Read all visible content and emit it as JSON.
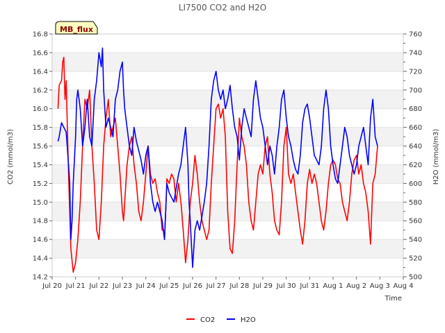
{
  "chart_data": {
    "type": "line",
    "title": "LI7500 CO2 and H2O",
    "badge": "MB_flux",
    "xlabel": "Time",
    "ylabel_left": "CO2 (mmol/m3)",
    "ylabel_right": "H2O (mmol/m3)",
    "x_ticks": [
      "Jul 20",
      "Jul 21",
      "Jul 22",
      "Jul 23",
      "Jul 24",
      "Jul 25",
      "Jul 26",
      "Jul 27",
      "Jul 28",
      "Jul 29",
      "Jul 30",
      "Jul 31",
      "Aug 1",
      "Aug 2",
      "Aug 3",
      "Aug 4"
    ],
    "x_range_days": [
      0,
      15
    ],
    "y_left_range": [
      14.2,
      16.8
    ],
    "y_left_ticks": [
      "14.2",
      "14.4",
      "14.6",
      "14.8",
      "15.0",
      "15.2",
      "15.4",
      "15.6",
      "15.8",
      "16.0",
      "16.2",
      "16.4",
      "16.6",
      "16.8"
    ],
    "y_right_range": [
      500,
      760
    ],
    "y_right_ticks": [
      "500",
      "520",
      "540",
      "560",
      "580",
      "600",
      "620",
      "640",
      "660",
      "680",
      "700",
      "720",
      "740",
      "760"
    ],
    "grid": "horizontal alternating bands",
    "legend_position": "bottom-center",
    "series": [
      {
        "name": "CO2",
        "axis": "left",
        "color": "#ff0000",
        "points": [
          [
            0.25,
            16.0
          ],
          [
            0.3,
            16.25
          ],
          [
            0.4,
            16.3
          ],
          [
            0.45,
            16.5
          ],
          [
            0.5,
            16.55
          ],
          [
            0.55,
            16.1
          ],
          [
            0.6,
            16.3
          ],
          [
            0.7,
            15.3
          ],
          [
            0.8,
            14.5
          ],
          [
            0.9,
            14.25
          ],
          [
            1.0,
            14.35
          ],
          [
            1.1,
            14.6
          ],
          [
            1.2,
            15.0
          ],
          [
            1.3,
            15.6
          ],
          [
            1.4,
            16.1
          ],
          [
            1.5,
            16.0
          ],
          [
            1.6,
            16.2
          ],
          [
            1.7,
            15.6
          ],
          [
            1.8,
            15.2
          ],
          [
            1.9,
            14.7
          ],
          [
            2.0,
            14.6
          ],
          [
            2.1,
            15.0
          ],
          [
            2.2,
            15.6
          ],
          [
            2.3,
            15.9
          ],
          [
            2.4,
            16.1
          ],
          [
            2.5,
            15.7
          ],
          [
            2.6,
            15.8
          ],
          [
            2.7,
            15.9
          ],
          [
            2.8,
            15.6
          ],
          [
            2.9,
            15.3
          ],
          [
            3.0,
            14.9
          ],
          [
            3.05,
            14.8
          ],
          [
            3.1,
            15.0
          ],
          [
            3.2,
            15.4
          ],
          [
            3.3,
            15.6
          ],
          [
            3.4,
            15.7
          ],
          [
            3.5,
            15.4
          ],
          [
            3.6,
            15.2
          ],
          [
            3.7,
            14.9
          ],
          [
            3.8,
            14.8
          ],
          [
            3.9,
            15.0
          ],
          [
            4.0,
            15.3
          ],
          [
            4.1,
            15.6
          ],
          [
            4.2,
            15.3
          ],
          [
            4.3,
            15.2
          ],
          [
            4.4,
            15.25
          ],
          [
            4.5,
            15.1
          ],
          [
            4.6,
            15.0
          ],
          [
            4.7,
            14.7
          ],
          [
            4.75,
            14.7
          ],
          [
            4.8,
            14.6
          ],
          [
            4.85,
            14.9
          ],
          [
            4.9,
            15.25
          ],
          [
            5.0,
            15.2
          ],
          [
            5.1,
            15.3
          ],
          [
            5.2,
            15.25
          ],
          [
            5.3,
            15.0
          ],
          [
            5.4,
            15.2
          ],
          [
            5.5,
            15.0
          ],
          [
            5.6,
            14.7
          ],
          [
            5.7,
            14.35
          ],
          [
            5.8,
            14.6
          ],
          [
            5.9,
            15.0
          ],
          [
            6.0,
            15.2
          ],
          [
            6.1,
            15.5
          ],
          [
            6.2,
            15.3
          ],
          [
            6.3,
            15.0
          ],
          [
            6.4,
            14.8
          ],
          [
            6.5,
            14.7
          ],
          [
            6.6,
            14.6
          ],
          [
            6.7,
            14.7
          ],
          [
            6.8,
            15.2
          ],
          [
            6.9,
            15.6
          ],
          [
            7.0,
            16.0
          ],
          [
            7.1,
            16.05
          ],
          [
            7.2,
            15.9
          ],
          [
            7.3,
            16.0
          ],
          [
            7.4,
            15.7
          ],
          [
            7.5,
            14.9
          ],
          [
            7.6,
            14.5
          ],
          [
            7.7,
            14.45
          ],
          [
            7.8,
            14.8
          ],
          [
            7.9,
            15.4
          ],
          [
            8.0,
            15.9
          ],
          [
            8.1,
            15.7
          ],
          [
            8.2,
            15.6
          ],
          [
            8.3,
            15.4
          ],
          [
            8.4,
            15.0
          ],
          [
            8.5,
            14.8
          ],
          [
            8.6,
            14.7
          ],
          [
            8.7,
            15.0
          ],
          [
            8.8,
            15.3
          ],
          [
            8.9,
            15.4
          ],
          [
            9.0,
            15.3
          ],
          [
            9.1,
            15.6
          ],
          [
            9.2,
            15.7
          ],
          [
            9.3,
            15.3
          ],
          [
            9.4,
            15.1
          ],
          [
            9.5,
            14.8
          ],
          [
            9.6,
            14.7
          ],
          [
            9.7,
            14.65
          ],
          [
            9.8,
            15.0
          ],
          [
            9.9,
            15.6
          ],
          [
            10.0,
            15.8
          ],
          [
            10.1,
            15.3
          ],
          [
            10.2,
            15.2
          ],
          [
            10.3,
            15.3
          ],
          [
            10.4,
            15.1
          ],
          [
            10.5,
            14.9
          ],
          [
            10.6,
            14.7
          ],
          [
            10.7,
            14.55
          ],
          [
            10.8,
            14.8
          ],
          [
            10.9,
            15.2
          ],
          [
            11.0,
            15.35
          ],
          [
            11.1,
            15.2
          ],
          [
            11.2,
            15.3
          ],
          [
            11.3,
            15.2
          ],
          [
            11.4,
            15.0
          ],
          [
            11.5,
            14.8
          ],
          [
            11.6,
            14.7
          ],
          [
            11.7,
            14.9
          ],
          [
            11.8,
            15.2
          ],
          [
            11.9,
            15.4
          ],
          [
            12.0,
            15.45
          ],
          [
            12.1,
            15.4
          ],
          [
            12.2,
            15.25
          ],
          [
            12.3,
            15.2
          ],
          [
            12.4,
            15.0
          ],
          [
            12.5,
            14.9
          ],
          [
            12.6,
            14.8
          ],
          [
            12.7,
            15.0
          ],
          [
            12.8,
            15.3
          ],
          [
            12.9,
            15.45
          ],
          [
            13.0,
            15.5
          ],
          [
            13.1,
            15.3
          ],
          [
            13.2,
            15.4
          ],
          [
            13.3,
            15.2
          ],
          [
            13.4,
            15.1
          ],
          [
            13.5,
            14.9
          ],
          [
            13.6,
            14.55
          ],
          [
            13.7,
            15.2
          ],
          [
            13.8,
            15.3
          ],
          [
            13.9,
            15.6
          ]
        ]
      },
      {
        "name": "H2O",
        "axis": "right",
        "color": "#0000ff",
        "points": [
          [
            0.25,
            645
          ],
          [
            0.3,
            650
          ],
          [
            0.4,
            665
          ],
          [
            0.5,
            660
          ],
          [
            0.6,
            655
          ],
          [
            0.7,
            620
          ],
          [
            0.75,
            600
          ],
          [
            0.8,
            540
          ],
          [
            0.85,
            560
          ],
          [
            0.9,
            600
          ],
          [
            1.0,
            650
          ],
          [
            1.05,
            690
          ],
          [
            1.1,
            700
          ],
          [
            1.2,
            680
          ],
          [
            1.3,
            640
          ],
          [
            1.4,
            660
          ],
          [
            1.5,
            690
          ],
          [
            1.6,
            650
          ],
          [
            1.7,
            640
          ],
          [
            1.8,
            690
          ],
          [
            1.9,
            710
          ],
          [
            2.0,
            740
          ],
          [
            2.1,
            725
          ],
          [
            2.15,
            745
          ],
          [
            2.2,
            700
          ],
          [
            2.3,
            660
          ],
          [
            2.4,
            670
          ],
          [
            2.5,
            660
          ],
          [
            2.6,
            650
          ],
          [
            2.7,
            690
          ],
          [
            2.8,
            700
          ],
          [
            2.9,
            720
          ],
          [
            3.0,
            730
          ],
          [
            3.05,
            700
          ],
          [
            3.1,
            680
          ],
          [
            3.2,
            660
          ],
          [
            3.3,
            640
          ],
          [
            3.4,
            630
          ],
          [
            3.5,
            660
          ],
          [
            3.6,
            645
          ],
          [
            3.7,
            635
          ],
          [
            3.8,
            625
          ],
          [
            3.9,
            610
          ],
          [
            4.0,
            630
          ],
          [
            4.1,
            640
          ],
          [
            4.2,
            600
          ],
          [
            4.3,
            580
          ],
          [
            4.4,
            570
          ],
          [
            4.5,
            580
          ],
          [
            4.6,
            570
          ],
          [
            4.7,
            560
          ],
          [
            4.8,
            540
          ],
          [
            4.9,
            600
          ],
          [
            5.0,
            590
          ],
          [
            5.1,
            585
          ],
          [
            5.2,
            580
          ],
          [
            5.3,
            595
          ],
          [
            5.4,
            610
          ],
          [
            5.5,
            620
          ],
          [
            5.6,
            640
          ],
          [
            5.7,
            660
          ],
          [
            5.8,
            620
          ],
          [
            5.85,
            580
          ],
          [
            5.9,
            560
          ],
          [
            6.0,
            510
          ],
          [
            6.1,
            550
          ],
          [
            6.2,
            560
          ],
          [
            6.3,
            550
          ],
          [
            6.4,
            565
          ],
          [
            6.5,
            580
          ],
          [
            6.6,
            600
          ],
          [
            6.7,
            640
          ],
          [
            6.8,
            690
          ],
          [
            6.9,
            710
          ],
          [
            7.0,
            720
          ],
          [
            7.1,
            700
          ],
          [
            7.2,
            690
          ],
          [
            7.3,
            700
          ],
          [
            7.4,
            680
          ],
          [
            7.5,
            690
          ],
          [
            7.6,
            705
          ],
          [
            7.7,
            680
          ],
          [
            7.8,
            660
          ],
          [
            7.9,
            650
          ],
          [
            8.0,
            625
          ],
          [
            8.1,
            660
          ],
          [
            8.2,
            680
          ],
          [
            8.3,
            670
          ],
          [
            8.4,
            660
          ],
          [
            8.5,
            650
          ],
          [
            8.6,
            690
          ],
          [
            8.7,
            710
          ],
          [
            8.8,
            690
          ],
          [
            8.9,
            670
          ],
          [
            9.0,
            660
          ],
          [
            9.1,
            640
          ],
          [
            9.2,
            620
          ],
          [
            9.3,
            640
          ],
          [
            9.4,
            630
          ],
          [
            9.5,
            610
          ],
          [
            9.6,
            640
          ],
          [
            9.7,
            660
          ],
          [
            9.8,
            690
          ],
          [
            9.9,
            700
          ],
          [
            10.0,
            670
          ],
          [
            10.1,
            650
          ],
          [
            10.2,
            640
          ],
          [
            10.3,
            625
          ],
          [
            10.4,
            615
          ],
          [
            10.5,
            610
          ],
          [
            10.6,
            630
          ],
          [
            10.7,
            665
          ],
          [
            10.8,
            680
          ],
          [
            10.9,
            685
          ],
          [
            11.0,
            670
          ],
          [
            11.1,
            650
          ],
          [
            11.2,
            630
          ],
          [
            11.3,
            625
          ],
          [
            11.4,
            620
          ],
          [
            11.5,
            640
          ],
          [
            11.6,
            680
          ],
          [
            11.7,
            700
          ],
          [
            11.8,
            680
          ],
          [
            11.9,
            640
          ],
          [
            12.0,
            620
          ],
          [
            12.1,
            605
          ],
          [
            12.2,
            600
          ],
          [
            12.3,
            620
          ],
          [
            12.4,
            640
          ],
          [
            12.5,
            660
          ],
          [
            12.6,
            650
          ],
          [
            12.7,
            630
          ],
          [
            12.8,
            620
          ],
          [
            12.9,
            610
          ],
          [
            13.0,
            620
          ],
          [
            13.1,
            640
          ],
          [
            13.2,
            650
          ],
          [
            13.3,
            660
          ],
          [
            13.4,
            640
          ],
          [
            13.5,
            620
          ],
          [
            13.6,
            670
          ],
          [
            13.7,
            690
          ],
          [
            13.8,
            650
          ],
          [
            13.9,
            640
          ]
        ]
      }
    ]
  }
}
